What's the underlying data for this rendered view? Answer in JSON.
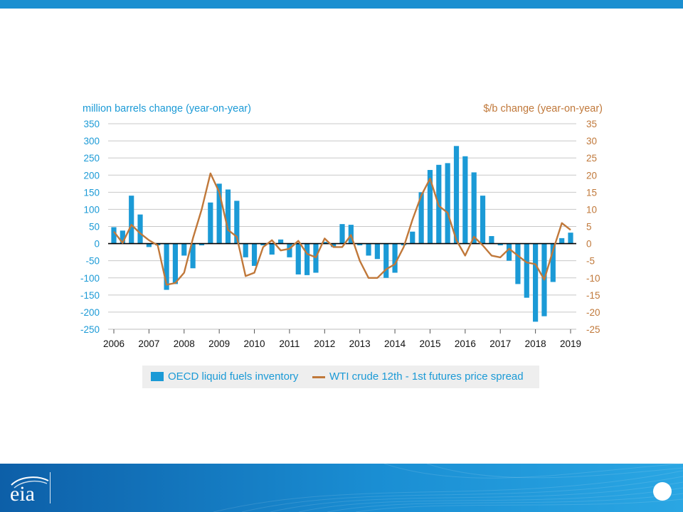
{
  "chart_data": {
    "type": "bar+line",
    "left_axis": {
      "label": "million barrels change (year-on-year)",
      "ylim": [
        -250,
        350
      ],
      "ticks": [
        350,
        300,
        250,
        200,
        150,
        100,
        50,
        0,
        -50,
        -100,
        -150,
        -200,
        -250
      ],
      "color": "#1b9ad6"
    },
    "right_axis": {
      "label": "$/b change (year-on-year)",
      "ylim": [
        -25,
        35
      ],
      "ticks": [
        35,
        30,
        25,
        20,
        15,
        10,
        5,
        0,
        -5,
        -10,
        -15,
        -20,
        -25
      ],
      "color": "#c0783a"
    },
    "x_ticks": [
      "2006",
      "2007",
      "2008",
      "2009",
      "2010",
      "2011",
      "2012",
      "2013",
      "2014",
      "2015",
      "2016",
      "2017",
      "2018",
      "2019"
    ],
    "grid": true,
    "legend_position": "bottom",
    "series": [
      {
        "name": "OECD liquid fuels inventory",
        "type": "bar",
        "axis": "left",
        "color": "#1b9ad6",
        "x": [
          2006.0,
          2006.25,
          2006.5,
          2006.75,
          2007.0,
          2007.25,
          2007.5,
          2007.75,
          2008.0,
          2008.25,
          2008.5,
          2008.75,
          2009.0,
          2009.25,
          2009.5,
          2009.75,
          2010.0,
          2010.25,
          2010.5,
          2010.75,
          2011.0,
          2011.25,
          2011.5,
          2011.75,
          2012.0,
          2012.25,
          2012.5,
          2012.75,
          2013.0,
          2013.25,
          2013.5,
          2013.75,
          2014.0,
          2014.25,
          2014.5,
          2014.75,
          2015.0,
          2015.25,
          2015.5,
          2015.75,
          2016.0,
          2016.25,
          2016.5,
          2016.75,
          2017.0,
          2017.25,
          2017.5,
          2017.75,
          2018.0,
          2018.25,
          2018.5,
          2018.75,
          2019.0
        ],
        "values": [
          48,
          38,
          140,
          85,
          -10,
          -5,
          -135,
          -118,
          -35,
          -72,
          -5,
          120,
          175,
          158,
          125,
          -40,
          -65,
          -5,
          -32,
          12,
          -40,
          -90,
          -92,
          -85,
          5,
          -10,
          57,
          55,
          -5,
          -35,
          -45,
          -100,
          -85,
          -5,
          35,
          150,
          215,
          230,
          235,
          285,
          255,
          208,
          140,
          22,
          -5,
          -50,
          -118,
          -158,
          -228,
          -212,
          -112,
          16,
          32
        ]
      },
      {
        "name": "WTI crude 12th - 1st futures price spread",
        "type": "line",
        "axis": "right",
        "color": "#c0783a",
        "x": [
          2006.0,
          2006.25,
          2006.5,
          2006.75,
          2007.0,
          2007.25,
          2007.5,
          2007.75,
          2008.0,
          2008.25,
          2008.5,
          2008.75,
          2009.0,
          2009.25,
          2009.5,
          2009.75,
          2010.0,
          2010.25,
          2010.5,
          2010.75,
          2011.0,
          2011.25,
          2011.5,
          2011.75,
          2012.0,
          2012.25,
          2012.5,
          2012.75,
          2013.0,
          2013.25,
          2013.5,
          2013.75,
          2014.0,
          2014.25,
          2014.5,
          2014.75,
          2015.0,
          2015.25,
          2015.5,
          2015.75,
          2016.0,
          2016.25,
          2016.5,
          2016.75,
          2017.0,
          2017.25,
          2017.5,
          2017.75,
          2018.0,
          2018.25,
          2018.5,
          2018.75,
          2019.0
        ],
        "values": [
          3.5,
          0.2,
          5.5,
          3,
          1,
          -0.5,
          -12,
          -11.5,
          -8.5,
          1.5,
          10,
          20.5,
          15,
          4,
          2,
          -9.5,
          -8.5,
          -1,
          1,
          -2,
          -1.5,
          0.8,
          -3,
          -4,
          1.5,
          -1,
          -1,
          2.5,
          -5,
          -10,
          -10,
          -7.5,
          -6,
          -1,
          7,
          14,
          19,
          11,
          9,
          1,
          -3.5,
          2,
          -0.5,
          -3.5,
          -4,
          -1.5,
          -3.5,
          -5.5,
          -6,
          -10.5,
          -2,
          6,
          4
        ]
      }
    ]
  }
}
